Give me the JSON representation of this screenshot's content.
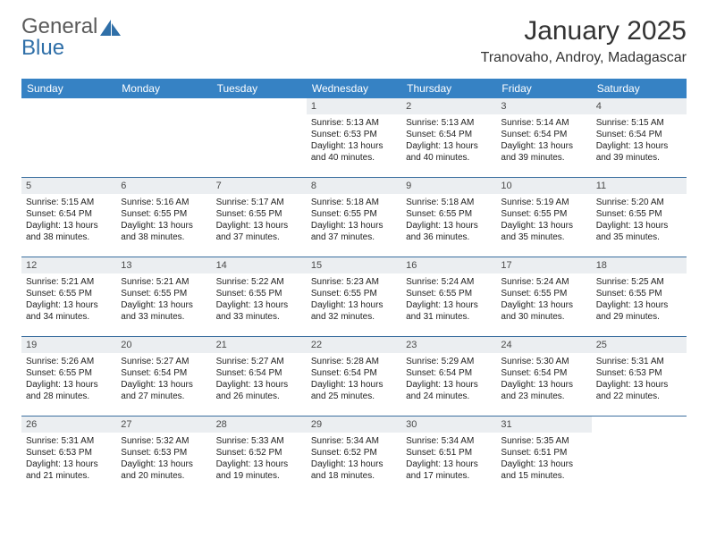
{
  "brand": {
    "part1": "General",
    "part2": "Blue"
  },
  "title": "January 2025",
  "location": "Tranovaho, Androy, Madagascar",
  "weekdays": [
    "Sunday",
    "Monday",
    "Tuesday",
    "Wednesday",
    "Thursday",
    "Friday",
    "Saturday"
  ],
  "colors": {
    "header_bg": "#3682c4",
    "header_text": "#ffffff",
    "daynum_bg": "#ebeef1",
    "border": "#3b6fa0",
    "text": "#222222",
    "logo_gray": "#5a5a5a",
    "logo_blue": "#2f6fa8"
  },
  "weeks": [
    [
      null,
      null,
      null,
      {
        "n": "1",
        "sr": "Sunrise: 5:13 AM",
        "ss": "Sunset: 6:53 PM",
        "d1": "Daylight: 13 hours",
        "d2": "and 40 minutes."
      },
      {
        "n": "2",
        "sr": "Sunrise: 5:13 AM",
        "ss": "Sunset: 6:54 PM",
        "d1": "Daylight: 13 hours",
        "d2": "and 40 minutes."
      },
      {
        "n": "3",
        "sr": "Sunrise: 5:14 AM",
        "ss": "Sunset: 6:54 PM",
        "d1": "Daylight: 13 hours",
        "d2": "and 39 minutes."
      },
      {
        "n": "4",
        "sr": "Sunrise: 5:15 AM",
        "ss": "Sunset: 6:54 PM",
        "d1": "Daylight: 13 hours",
        "d2": "and 39 minutes."
      }
    ],
    [
      {
        "n": "5",
        "sr": "Sunrise: 5:15 AM",
        "ss": "Sunset: 6:54 PM",
        "d1": "Daylight: 13 hours",
        "d2": "and 38 minutes."
      },
      {
        "n": "6",
        "sr": "Sunrise: 5:16 AM",
        "ss": "Sunset: 6:55 PM",
        "d1": "Daylight: 13 hours",
        "d2": "and 38 minutes."
      },
      {
        "n": "7",
        "sr": "Sunrise: 5:17 AM",
        "ss": "Sunset: 6:55 PM",
        "d1": "Daylight: 13 hours",
        "d2": "and 37 minutes."
      },
      {
        "n": "8",
        "sr": "Sunrise: 5:18 AM",
        "ss": "Sunset: 6:55 PM",
        "d1": "Daylight: 13 hours",
        "d2": "and 37 minutes."
      },
      {
        "n": "9",
        "sr": "Sunrise: 5:18 AM",
        "ss": "Sunset: 6:55 PM",
        "d1": "Daylight: 13 hours",
        "d2": "and 36 minutes."
      },
      {
        "n": "10",
        "sr": "Sunrise: 5:19 AM",
        "ss": "Sunset: 6:55 PM",
        "d1": "Daylight: 13 hours",
        "d2": "and 35 minutes."
      },
      {
        "n": "11",
        "sr": "Sunrise: 5:20 AM",
        "ss": "Sunset: 6:55 PM",
        "d1": "Daylight: 13 hours",
        "d2": "and 35 minutes."
      }
    ],
    [
      {
        "n": "12",
        "sr": "Sunrise: 5:21 AM",
        "ss": "Sunset: 6:55 PM",
        "d1": "Daylight: 13 hours",
        "d2": "and 34 minutes."
      },
      {
        "n": "13",
        "sr": "Sunrise: 5:21 AM",
        "ss": "Sunset: 6:55 PM",
        "d1": "Daylight: 13 hours",
        "d2": "and 33 minutes."
      },
      {
        "n": "14",
        "sr": "Sunrise: 5:22 AM",
        "ss": "Sunset: 6:55 PM",
        "d1": "Daylight: 13 hours",
        "d2": "and 33 minutes."
      },
      {
        "n": "15",
        "sr": "Sunrise: 5:23 AM",
        "ss": "Sunset: 6:55 PM",
        "d1": "Daylight: 13 hours",
        "d2": "and 32 minutes."
      },
      {
        "n": "16",
        "sr": "Sunrise: 5:24 AM",
        "ss": "Sunset: 6:55 PM",
        "d1": "Daylight: 13 hours",
        "d2": "and 31 minutes."
      },
      {
        "n": "17",
        "sr": "Sunrise: 5:24 AM",
        "ss": "Sunset: 6:55 PM",
        "d1": "Daylight: 13 hours",
        "d2": "and 30 minutes."
      },
      {
        "n": "18",
        "sr": "Sunrise: 5:25 AM",
        "ss": "Sunset: 6:55 PM",
        "d1": "Daylight: 13 hours",
        "d2": "and 29 minutes."
      }
    ],
    [
      {
        "n": "19",
        "sr": "Sunrise: 5:26 AM",
        "ss": "Sunset: 6:55 PM",
        "d1": "Daylight: 13 hours",
        "d2": "and 28 minutes."
      },
      {
        "n": "20",
        "sr": "Sunrise: 5:27 AM",
        "ss": "Sunset: 6:54 PM",
        "d1": "Daylight: 13 hours",
        "d2": "and 27 minutes."
      },
      {
        "n": "21",
        "sr": "Sunrise: 5:27 AM",
        "ss": "Sunset: 6:54 PM",
        "d1": "Daylight: 13 hours",
        "d2": "and 26 minutes."
      },
      {
        "n": "22",
        "sr": "Sunrise: 5:28 AM",
        "ss": "Sunset: 6:54 PM",
        "d1": "Daylight: 13 hours",
        "d2": "and 25 minutes."
      },
      {
        "n": "23",
        "sr": "Sunrise: 5:29 AM",
        "ss": "Sunset: 6:54 PM",
        "d1": "Daylight: 13 hours",
        "d2": "and 24 minutes."
      },
      {
        "n": "24",
        "sr": "Sunrise: 5:30 AM",
        "ss": "Sunset: 6:54 PM",
        "d1": "Daylight: 13 hours",
        "d2": "and 23 minutes."
      },
      {
        "n": "25",
        "sr": "Sunrise: 5:31 AM",
        "ss": "Sunset: 6:53 PM",
        "d1": "Daylight: 13 hours",
        "d2": "and 22 minutes."
      }
    ],
    [
      {
        "n": "26",
        "sr": "Sunrise: 5:31 AM",
        "ss": "Sunset: 6:53 PM",
        "d1": "Daylight: 13 hours",
        "d2": "and 21 minutes."
      },
      {
        "n": "27",
        "sr": "Sunrise: 5:32 AM",
        "ss": "Sunset: 6:53 PM",
        "d1": "Daylight: 13 hours",
        "d2": "and 20 minutes."
      },
      {
        "n": "28",
        "sr": "Sunrise: 5:33 AM",
        "ss": "Sunset: 6:52 PM",
        "d1": "Daylight: 13 hours",
        "d2": "and 19 minutes."
      },
      {
        "n": "29",
        "sr": "Sunrise: 5:34 AM",
        "ss": "Sunset: 6:52 PM",
        "d1": "Daylight: 13 hours",
        "d2": "and 18 minutes."
      },
      {
        "n": "30",
        "sr": "Sunrise: 5:34 AM",
        "ss": "Sunset: 6:51 PM",
        "d1": "Daylight: 13 hours",
        "d2": "and 17 minutes."
      },
      {
        "n": "31",
        "sr": "Sunrise: 5:35 AM",
        "ss": "Sunset: 6:51 PM",
        "d1": "Daylight: 13 hours",
        "d2": "and 15 minutes."
      },
      null
    ]
  ]
}
